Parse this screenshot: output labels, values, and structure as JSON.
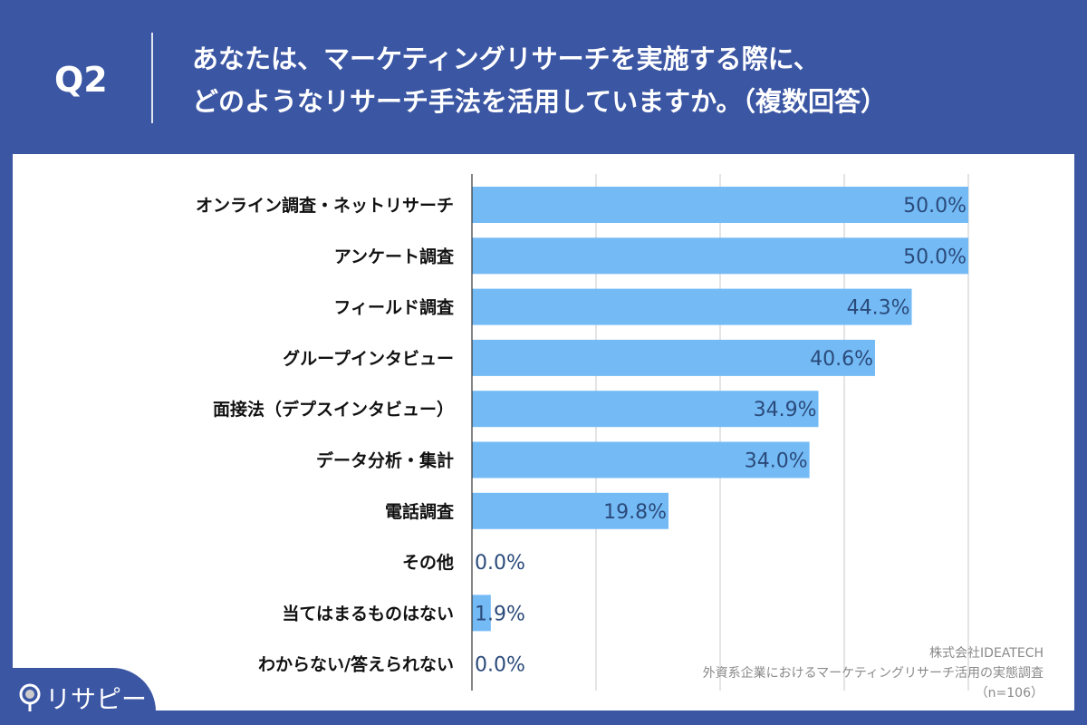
{
  "header": {
    "question_no": "Q2",
    "question_lines": [
      "あなたは、マーケティングリサーチを実施する際に、",
      "どのようなリサーチ手法を活用していますか。（複数回答）"
    ]
  },
  "logo": {
    "text": "リサピー",
    "icon": "map-pin-icon"
  },
  "credit": {
    "company": "株式会社IDEATECH",
    "survey": "外資系企業におけるマーケティングリサーチ活用の実態調査",
    "sample": "（n=106）"
  },
  "colors": {
    "background": "#3b56a3",
    "bar": "#74bbf6",
    "label": "#2b4a7a"
  },
  "chart_data": {
    "type": "bar",
    "orientation": "horizontal",
    "categories": [
      "オンライン調査・ネットリサーチ",
      "アンケート調査",
      "フィールド調査",
      "グループインタビュー",
      "面接法（デプスインタビュー）",
      "データ分析・集計",
      "電話調査",
      "その他",
      "当てはまるものはない",
      "わからない/答えられない"
    ],
    "values": [
      50.0,
      50.0,
      44.3,
      40.6,
      34.9,
      34.0,
      19.8,
      0.0,
      1.9,
      0.0
    ],
    "value_labels": [
      "50.0%",
      "50.0%",
      "44.3%",
      "40.6%",
      "34.9%",
      "34.0%",
      "19.8%",
      "0.0%",
      "1.9%",
      "0.0%"
    ],
    "xlim": [
      0,
      50
    ],
    "grid": true,
    "grid_step": 12.5
  }
}
